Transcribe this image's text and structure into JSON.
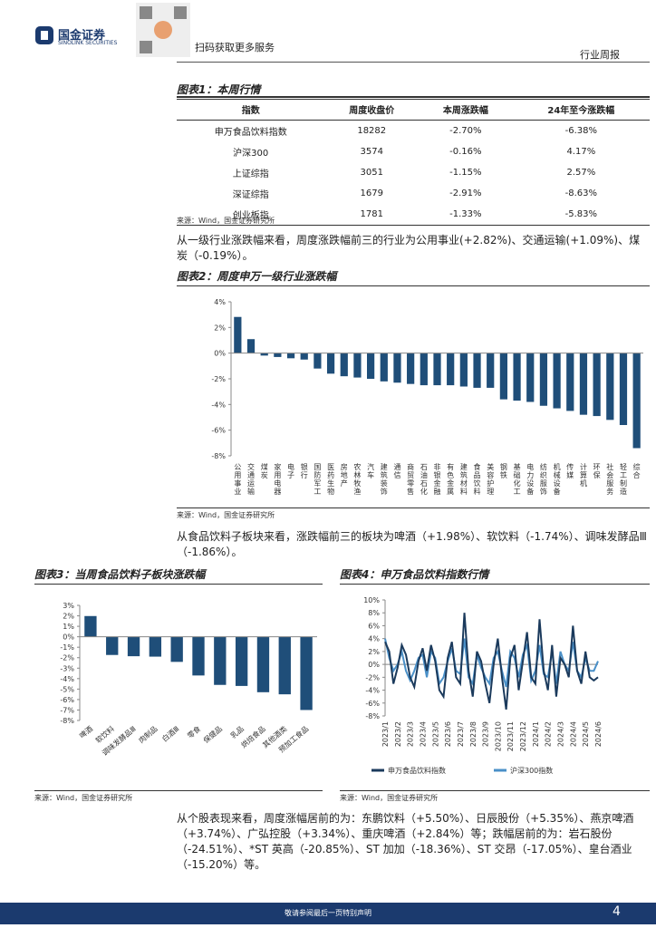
{
  "header": {
    "company": "国金证券",
    "company_en": "SINOLINK SECURITIES",
    "qr_text": "扫码获取更多服务",
    "report_type": "行业周报"
  },
  "table": {
    "title": "图表1：本周行情",
    "columns": [
      "指数",
      "周度收盘价",
      "本周涨跌幅",
      "24年至今涨跌幅"
    ],
    "rows": [
      [
        "申万食品饮料指数",
        "18282",
        "-2.70%",
        "-6.38%"
      ],
      [
        "沪深300",
        "3574",
        "-0.16%",
        "4.17%"
      ],
      [
        "上证综指",
        "3051",
        "-1.15%",
        "2.57%"
      ],
      [
        "深证综指",
        "1679",
        "-2.91%",
        "-8.63%"
      ],
      [
        "创业板指",
        "1781",
        "-1.33%",
        "-5.83%"
      ]
    ],
    "source": "来源：Wind，国金证券研究所"
  },
  "paragraphs": [
    "从一级行业涨跌幅来看，周度涨跌幅前三的行业为公用事业(+2.82%)、交通运输(+1.09%)、煤炭（-0.19%）。",
    "从食品饮料子板块来看，涨跌幅前三的板块为啤酒（+1.98%）、软饮料（-1.74%）、调味发酵品Ⅲ（-1.86%）。",
    "从个股表现来看，周度涨幅居前的为：东鹏饮料（+5.50%）、日辰股份（+5.35%）、燕京啤酒（+3.74%）、广弘控股（+3.34%）、重庆啤酒（+2.84%）等；跌幅居前的为：岩石股份（-24.51%）、*ST 英高（-20.85%）、ST 加加（-18.36%）、ST 交昂（-17.05%）、皇台酒业（-15.20%）等。"
  ],
  "chart_data": [
    {
      "type": "bar",
      "title": "图表2：周度申万一级行业涨跌幅",
      "source": "来源：Wind，国金证券研究所",
      "color": "#1f4e79",
      "categories": [
        "公用事业",
        "交通运输",
        "煤炭",
        "家用电器",
        "电子",
        "银行",
        "国防军工",
        "医药生物",
        "房地产",
        "农林牧渔",
        "汽车",
        "建筑装饰",
        "通信",
        "商贸零售",
        "石油石化",
        "非银金融",
        "有色金属",
        "建筑材料",
        "食品饮料",
        "美容护理",
        "钢铁",
        "基础化工",
        "电力设备",
        "纺织服饰",
        "机械设备",
        "传媒",
        "计算机",
        "环保",
        "社会服务",
        "轻工制造",
        "综合"
      ],
      "values": [
        2.82,
        1.09,
        -0.19,
        -0.3,
        -0.4,
        -0.5,
        -1.2,
        -1.6,
        -1.8,
        -1.9,
        -2.0,
        -2.2,
        -2.3,
        -2.4,
        -2.5,
        -2.5,
        -2.5,
        -2.6,
        -2.7,
        -2.7,
        -3.6,
        -3.7,
        -3.8,
        -4.1,
        -4.3,
        -4.5,
        -4.8,
        -4.9,
        -5.2,
        -5.6,
        -7.4
      ],
      "ylim": [
        -8,
        4
      ],
      "yticks": [
        {
          "value": 4,
          "label": "4%"
        },
        {
          "value": 2,
          "label": "2%"
        },
        {
          "value": 0,
          "label": "0%"
        },
        {
          "value": -2,
          "label": "-2%"
        },
        {
          "value": -4,
          "label": "-4%"
        },
        {
          "value": -6,
          "label": "-6%"
        },
        {
          "value": -8,
          "label": "-8%"
        }
      ]
    },
    {
      "type": "bar",
      "title": "图表3：当周食品饮料子板块涨跌幅",
      "source": "来源：Wind，国金证券研究所",
      "color": "#1f4e79",
      "categories": [
        "啤酒",
        "软饮料",
        "调味发酵品Ⅲ",
        "肉制品",
        "白酒Ⅲ",
        "零食",
        "保健品",
        "乳品",
        "烘焙食品",
        "其他酒类",
        "预加工食品"
      ],
      "values": [
        1.98,
        -1.74,
        -1.86,
        -1.9,
        -2.4,
        -3.7,
        -4.6,
        -4.7,
        -5.3,
        -5.5,
        -7.0
      ],
      "ylim": [
        -8,
        3
      ],
      "yticks": [
        {
          "value": 3,
          "label": "3%"
        },
        {
          "value": 2,
          "label": "2%"
        },
        {
          "value": 1,
          "label": "1%"
        },
        {
          "value": 0,
          "label": "0%"
        },
        {
          "value": -1,
          "label": "-1%"
        },
        {
          "value": -2,
          "label": "-2%"
        },
        {
          "value": -3,
          "label": "-3%"
        },
        {
          "value": -4,
          "label": "-4%"
        },
        {
          "value": -5,
          "label": "-5%"
        },
        {
          "value": -6,
          "label": "-6%"
        },
        {
          "value": -7,
          "label": "-7%"
        },
        {
          "value": -8,
          "label": "-8%"
        }
      ]
    },
    {
      "type": "line",
      "title": "图表4：申万食品饮料指数行情",
      "source": "来源：Wind，国金证券研究所",
      "categories": [
        "2023/1",
        null,
        null,
        "2023/2",
        null,
        null,
        "2023/3",
        null,
        null,
        "2023/4",
        null,
        null,
        "2023/5",
        null,
        null,
        "2023/6",
        null,
        null,
        "2023/7",
        null,
        null,
        "2023/8",
        null,
        null,
        "2023/9",
        null,
        null,
        "2023/10",
        null,
        null,
        "2023/11",
        null,
        null,
        "2023/12",
        null,
        null,
        "2024/1",
        null,
        null,
        "2024/2",
        null,
        null,
        "2024/3",
        null,
        null,
        "2024/4",
        null,
        null,
        "2024/5",
        null,
        null,
        "2024/6"
      ],
      "series": [
        {
          "name": "申万食品饮料指数",
          "color": "#1b3a5c",
          "values": [
            3.5,
            2.0,
            -3.0,
            -0.5,
            3.0,
            1.5,
            -2.0,
            -3.5,
            0.5,
            2.5,
            -1.0,
            3.0,
            0.5,
            -4.0,
            -5.0,
            1.0,
            3.5,
            -2.0,
            -3.0,
            8.0,
            -1.0,
            -5.0,
            2.0,
            0.5,
            -3.0,
            -6.0,
            0.0,
            4.0,
            -2.0,
            -7.0,
            1.0,
            3.0,
            -4.0,
            0.5,
            5.0,
            -2.0,
            -3.0,
            7.0,
            -1.0,
            -4.0,
            3.0,
            -5.0,
            1.0,
            0.0,
            -2.0,
            6.0,
            -1.0,
            -3.0,
            2.0,
            -2.0,
            -2.5,
            -2.0
          ]
        },
        {
          "name": "沪深300指数",
          "color": "#4a90c8",
          "values": [
            4.0,
            1.0,
            -1.0,
            0.0,
            2.0,
            -1.0,
            -2.5,
            -1.0,
            1.0,
            1.5,
            -2.0,
            2.0,
            1.0,
            -3.0,
            -2.0,
            0.5,
            2.5,
            -1.0,
            -1.5,
            4.0,
            -2.0,
            -3.0,
            1.5,
            -0.5,
            -2.0,
            -3.0,
            1.0,
            2.0,
            -1.0,
            -3.5,
            2.0,
            1.0,
            -2.0,
            1.5,
            3.0,
            -2.5,
            -1.0,
            3.0,
            -1.5,
            -2.0,
            2.0,
            -3.0,
            2.0,
            0.0,
            -1.0,
            3.5,
            -1.0,
            -2.0,
            1.0,
            -1.0,
            -1.0,
            0.5
          ]
        }
      ],
      "ylim": [
        -8,
        10
      ],
      "yticks": [
        {
          "value": 10,
          "label": "10%"
        },
        {
          "value": 8,
          "label": "8%"
        },
        {
          "value": 6,
          "label": "6%"
        },
        {
          "value": 4,
          "label": "4%"
        },
        {
          "value": 2,
          "label": "2%"
        },
        {
          "value": 0,
          "label": "0%"
        },
        {
          "value": -2,
          "label": "-2%"
        },
        {
          "value": -4,
          "label": "-4%"
        },
        {
          "value": -6,
          "label": "-6%"
        },
        {
          "value": -8,
          "label": "-8%"
        }
      ]
    }
  ],
  "footer": {
    "disclaimer": "敬请参阅最后一页特别声明",
    "page": "4"
  }
}
